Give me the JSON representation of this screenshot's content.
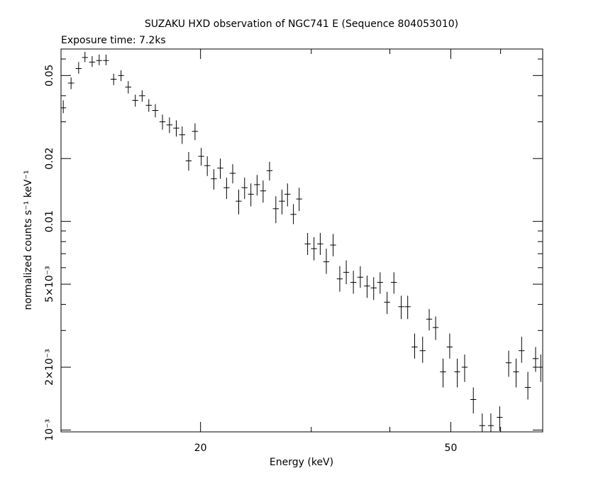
{
  "chart_data": {
    "type": "scatter",
    "title": "SUZAKU HXD observation of NGC741 E (Sequence 804053010)",
    "subtitle": "Exposure time: 7.2ks",
    "xlabel": "Energy (keV)",
    "ylabel": "normalized counts s⁻¹ keV⁻¹",
    "x_scale": "log",
    "y_scale": "log",
    "xlim": [
      12.0,
      70.0
    ],
    "ylim": [
      0.00098,
      0.067
    ],
    "x_ticks": [
      20,
      50
    ],
    "x_tick_labels": [
      "20",
      "50"
    ],
    "y_ticks": [
      0.001,
      0.002,
      0.005,
      0.01,
      0.02,
      0.05
    ],
    "y_tick_labels": [
      "10⁻³",
      "2×10⁻³",
      "5×10⁻³",
      "0.01",
      "0.02",
      "0.05"
    ],
    "grid": false,
    "series": [
      {
        "points": [
          {
            "x": 12.1,
            "xe": 0.13,
            "y": 0.035,
            "ylo": 0.033,
            "yhi": 0.038
          },
          {
            "x": 12.45,
            "xe": 0.14,
            "y": 0.046,
            "ylo": 0.043,
            "yhi": 0.049
          },
          {
            "x": 12.8,
            "xe": 0.14,
            "y": 0.054,
            "ylo": 0.051,
            "yhi": 0.058
          },
          {
            "x": 13.1,
            "xe": 0.14,
            "y": 0.061,
            "ylo": 0.058,
            "yhi": 0.065
          },
          {
            "x": 13.45,
            "xe": 0.15,
            "y": 0.058,
            "ylo": 0.055,
            "yhi": 0.062
          },
          {
            "x": 13.8,
            "xe": 0.15,
            "y": 0.059,
            "ylo": 0.056,
            "yhi": 0.063
          },
          {
            "x": 14.15,
            "xe": 0.15,
            "y": 0.059,
            "ylo": 0.056,
            "yhi": 0.063
          },
          {
            "x": 14.55,
            "xe": 0.16,
            "y": 0.048,
            "ylo": 0.045,
            "yhi": 0.051
          },
          {
            "x": 14.95,
            "xe": 0.16,
            "y": 0.05,
            "ylo": 0.047,
            "yhi": 0.053
          },
          {
            "x": 15.35,
            "xe": 0.17,
            "y": 0.044,
            "ylo": 0.041,
            "yhi": 0.047
          },
          {
            "x": 15.75,
            "xe": 0.17,
            "y": 0.038,
            "ylo": 0.0355,
            "yhi": 0.0405
          },
          {
            "x": 16.15,
            "xe": 0.18,
            "y": 0.04,
            "ylo": 0.0375,
            "yhi": 0.0425
          },
          {
            "x": 16.55,
            "xe": 0.18,
            "y": 0.036,
            "ylo": 0.0335,
            "yhi": 0.0385
          },
          {
            "x": 16.95,
            "xe": 0.19,
            "y": 0.034,
            "ylo": 0.0315,
            "yhi": 0.0365
          },
          {
            "x": 17.4,
            "xe": 0.19,
            "y": 0.03,
            "ylo": 0.0275,
            "yhi": 0.0325
          },
          {
            "x": 17.85,
            "xe": 0.2,
            "y": 0.029,
            "ylo": 0.0265,
            "yhi": 0.0315
          },
          {
            "x": 18.3,
            "xe": 0.2,
            "y": 0.028,
            "ylo": 0.0255,
            "yhi": 0.0305
          },
          {
            "x": 18.7,
            "xe": 0.21,
            "y": 0.026,
            "ylo": 0.0235,
            "yhi": 0.0285
          },
          {
            "x": 19.15,
            "xe": 0.21,
            "y": 0.0195,
            "ylo": 0.0175,
            "yhi": 0.0215
          },
          {
            "x": 19.6,
            "xe": 0.22,
            "y": 0.027,
            "ylo": 0.0245,
            "yhi": 0.0295
          },
          {
            "x": 20.05,
            "xe": 0.22,
            "y": 0.0205,
            "ylo": 0.0185,
            "yhi": 0.0225
          },
          {
            "x": 20.5,
            "xe": 0.23,
            "y": 0.0185,
            "ylo": 0.0165,
            "yhi": 0.0205
          },
          {
            "x": 21.0,
            "xe": 0.23,
            "y": 0.016,
            "ylo": 0.0142,
            "yhi": 0.0178
          },
          {
            "x": 21.5,
            "xe": 0.24,
            "y": 0.018,
            "ylo": 0.016,
            "yhi": 0.02
          },
          {
            "x": 22.0,
            "xe": 0.24,
            "y": 0.0145,
            "ylo": 0.0128,
            "yhi": 0.0162
          },
          {
            "x": 22.5,
            "xe": 0.25,
            "y": 0.017,
            "ylo": 0.0152,
            "yhi": 0.0188
          },
          {
            "x": 23.0,
            "xe": 0.25,
            "y": 0.0125,
            "ylo": 0.0108,
            "yhi": 0.0142
          },
          {
            "x": 23.5,
            "xe": 0.26,
            "y": 0.0145,
            "ylo": 0.0128,
            "yhi": 0.0162
          },
          {
            "x": 24.05,
            "xe": 0.26,
            "y": 0.0135,
            "ylo": 0.0118,
            "yhi": 0.0152
          },
          {
            "x": 24.6,
            "xe": 0.27,
            "y": 0.015,
            "ylo": 0.0133,
            "yhi": 0.0167
          },
          {
            "x": 25.15,
            "xe": 0.27,
            "y": 0.014,
            "ylo": 0.0123,
            "yhi": 0.0157
          },
          {
            "x": 25.75,
            "xe": 0.28,
            "y": 0.0175,
            "ylo": 0.0157,
            "yhi": 0.0193
          },
          {
            "x": 26.35,
            "xe": 0.29,
            "y": 0.0115,
            "ylo": 0.0098,
            "yhi": 0.0132
          },
          {
            "x": 26.95,
            "xe": 0.3,
            "y": 0.0125,
            "ylo": 0.0108,
            "yhi": 0.0142
          },
          {
            "x": 27.5,
            "xe": 0.3,
            "y": 0.0135,
            "ylo": 0.0118,
            "yhi": 0.0152
          },
          {
            "x": 28.1,
            "xe": 0.31,
            "y": 0.0108,
            "ylo": 0.0097,
            "yhi": 0.0121
          },
          {
            "x": 28.7,
            "xe": 0.31,
            "y": 0.0128,
            "ylo": 0.0112,
            "yhi": 0.0145
          },
          {
            "x": 29.6,
            "xe": 0.32,
            "y": 0.0078,
            "ylo": 0.0069,
            "yhi": 0.0088
          },
          {
            "x": 30.3,
            "xe": 0.33,
            "y": 0.0074,
            "ylo": 0.0065,
            "yhi": 0.0084
          },
          {
            "x": 31.0,
            "xe": 0.34,
            "y": 0.0078,
            "ylo": 0.0069,
            "yhi": 0.0088
          },
          {
            "x": 31.7,
            "xe": 0.35,
            "y": 0.0064,
            "ylo": 0.0056,
            "yhi": 0.0074
          },
          {
            "x": 32.5,
            "xe": 0.35,
            "y": 0.0077,
            "ylo": 0.0068,
            "yhi": 0.0087
          },
          {
            "x": 33.3,
            "xe": 0.36,
            "y": 0.0053,
            "ylo": 0.0046,
            "yhi": 0.0061
          },
          {
            "x": 34.1,
            "xe": 0.37,
            "y": 0.0057,
            "ylo": 0.005,
            "yhi": 0.0065
          },
          {
            "x": 35.0,
            "xe": 0.38,
            "y": 0.0051,
            "ylo": 0.0045,
            "yhi": 0.0058
          },
          {
            "x": 35.9,
            "xe": 0.39,
            "y": 0.0054,
            "ylo": 0.0048,
            "yhi": 0.0061
          },
          {
            "x": 36.8,
            "xe": 0.4,
            "y": 0.0049,
            "ylo": 0.0043,
            "yhi": 0.0055
          },
          {
            "x": 37.7,
            "xe": 0.41,
            "y": 0.0048,
            "ylo": 0.0042,
            "yhi": 0.0054
          },
          {
            "x": 38.6,
            "xe": 0.42,
            "y": 0.0051,
            "ylo": 0.0045,
            "yhi": 0.0057
          },
          {
            "x": 39.6,
            "xe": 0.43,
            "y": 0.0041,
            "ylo": 0.0036,
            "yhi": 0.0046
          },
          {
            "x": 40.6,
            "xe": 0.44,
            "y": 0.0051,
            "ylo": 0.0045,
            "yhi": 0.0057
          },
          {
            "x": 41.7,
            "xe": 0.45,
            "y": 0.0039,
            "ylo": 0.0034,
            "yhi": 0.0044
          },
          {
            "x": 42.7,
            "xe": 0.46,
            "y": 0.0039,
            "ylo": 0.0034,
            "yhi": 0.0044
          },
          {
            "x": 43.8,
            "xe": 0.48,
            "y": 0.0025,
            "ylo": 0.0022,
            "yhi": 0.0029
          },
          {
            "x": 45.1,
            "xe": 0.49,
            "y": 0.0024,
            "ylo": 0.0021,
            "yhi": 0.0028
          },
          {
            "x": 46.2,
            "xe": 0.5,
            "y": 0.0034,
            "ylo": 0.003,
            "yhi": 0.0038
          },
          {
            "x": 47.3,
            "xe": 0.51,
            "y": 0.0031,
            "ylo": 0.0027,
            "yhi": 0.0035
          },
          {
            "x": 48.6,
            "xe": 0.53,
            "y": 0.0019,
            "ylo": 0.0016,
            "yhi": 0.0022
          },
          {
            "x": 49.8,
            "xe": 0.54,
            "y": 0.0025,
            "ylo": 0.0022,
            "yhi": 0.0029
          },
          {
            "x": 51.2,
            "xe": 0.55,
            "y": 0.0019,
            "ylo": 0.0016,
            "yhi": 0.0022
          },
          {
            "x": 52.6,
            "xe": 0.57,
            "y": 0.002,
            "ylo": 0.0017,
            "yhi": 0.0023
          },
          {
            "x": 54.3,
            "xe": 0.59,
            "y": 0.0014,
            "ylo": 0.0012,
            "yhi": 0.0016
          },
          {
            "x": 56.1,
            "xe": 0.6,
            "y": 0.00105,
            "ylo": 0.00098,
            "yhi": 0.0012
          },
          {
            "x": 57.9,
            "xe": 0.62,
            "y": 0.00105,
            "ylo": 0.00098,
            "yhi": 0.0012
          },
          {
            "x": 59.8,
            "xe": 0.64,
            "y": 0.00115,
            "ylo": 0.00099,
            "yhi": 0.0013
          },
          {
            "x": 61.8,
            "xe": 0.66,
            "y": 0.0021,
            "ylo": 0.0018,
            "yhi": 0.0024
          },
          {
            "x": 63.5,
            "xe": 0.68,
            "y": 0.0019,
            "ylo": 0.0016,
            "yhi": 0.0022
          },
          {
            "x": 64.8,
            "xe": 0.7,
            "y": 0.0024,
            "ylo": 0.0021,
            "yhi": 0.0028
          },
          {
            "x": 66.3,
            "xe": 0.72,
            "y": 0.0016,
            "ylo": 0.0014,
            "yhi": 0.0019
          },
          {
            "x": 68.2,
            "xe": 0.74,
            "y": 0.0022,
            "ylo": 0.0019,
            "yhi": 0.0025
          },
          {
            "x": 69.5,
            "xe": 0.5,
            "y": 0.002,
            "ylo": 0.0017,
            "yhi": 0.0023
          }
        ]
      }
    ]
  }
}
